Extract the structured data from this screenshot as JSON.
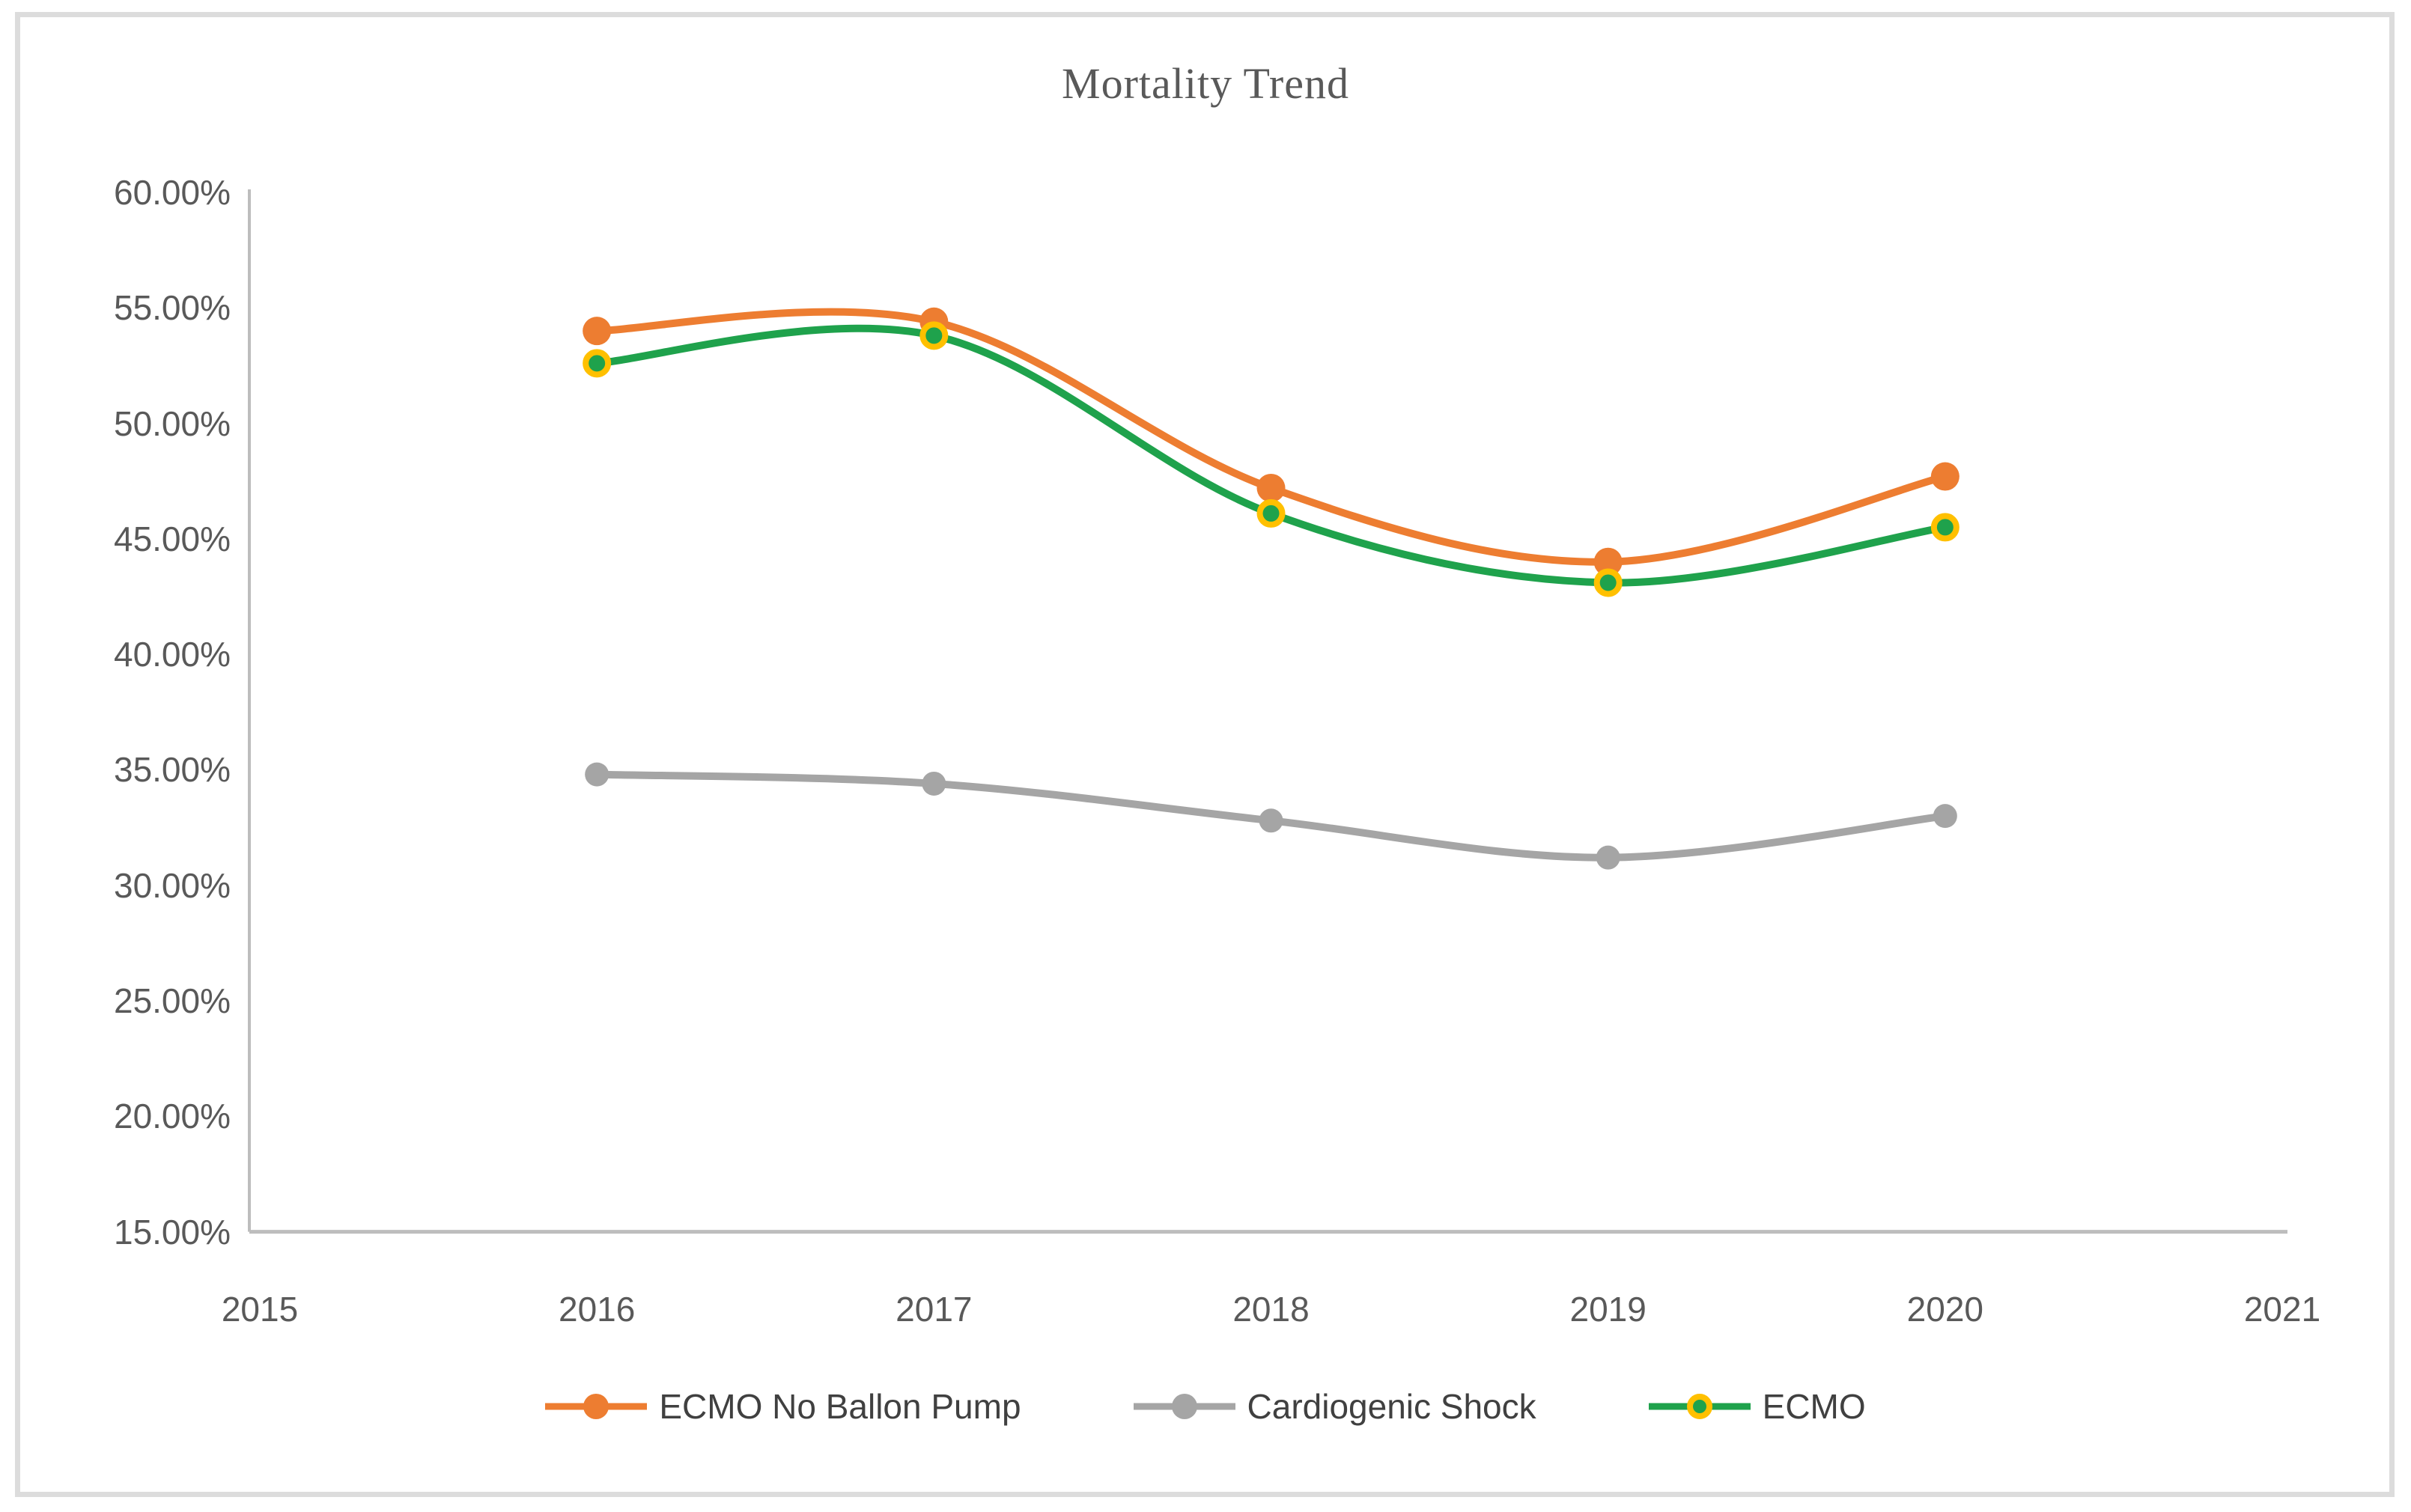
{
  "chart_data": {
    "type": "line",
    "title": "Mortality Trend",
    "smooth": true,
    "grid": false,
    "legend_position": "bottom",
    "x_axis": {
      "categories": [
        "2015",
        "2016",
        "2017",
        "2018",
        "2019",
        "2020",
        "2021"
      ]
    },
    "y_axis": {
      "min": 15,
      "max": 60,
      "step": 5,
      "tick_labels": [
        "60.00%",
        "55.00%",
        "50.00%",
        "45.00%",
        "40.00%",
        "35.00%",
        "30.00%",
        "25.00%",
        "20.00%",
        "15.00%"
      ]
    },
    "series": [
      {
        "name": "ECMO No Ballon Pump",
        "color": "#ED7D31",
        "marker_fill": "#ED7D31",
        "marker_ring": null,
        "x": [
          2016,
          2017,
          2018,
          2019,
          2020
        ],
        "values": [
          54.0,
          54.4,
          47.2,
          44.0,
          47.7
        ]
      },
      {
        "name": "Cardiogenic Shock",
        "color": "#A5A5A5",
        "marker_fill": "#A5A5A5",
        "marker_ring": null,
        "x": [
          2016,
          2017,
          2018,
          2019,
          2020
        ],
        "values": [
          34.8,
          34.4,
          32.8,
          31.2,
          33.0
        ]
      },
      {
        "name": "ECMO",
        "color": "#1FA24C",
        "marker_fill": "#1FA24C",
        "marker_ring": "#FFC000",
        "x": [
          2016,
          2017,
          2018,
          2019,
          2020
        ],
        "values": [
          52.6,
          53.8,
          46.1,
          43.1,
          45.5
        ]
      }
    ],
    "colors": {
      "axis_line": "#BDBDBD",
      "tick_text": "#595959",
      "title_text": "#595959",
      "legend_text": "#404040",
      "frame_border": "#dcdcdc"
    }
  }
}
